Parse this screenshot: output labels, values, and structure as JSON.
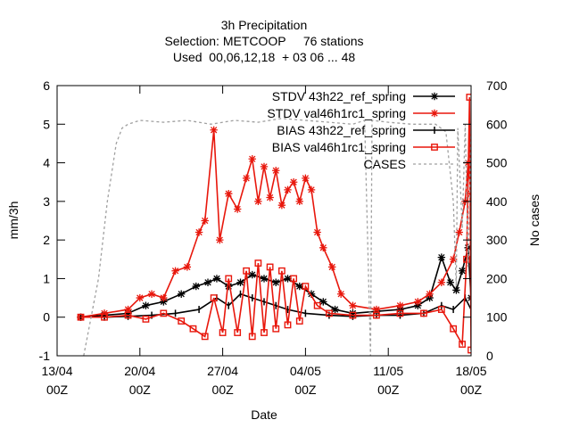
{
  "chart_data": {
    "type": "line",
    "title": [
      "3h Precipitation",
      "Selection: METCOOP     76 stations",
      "Used  00,06,12,18  + 03 06 ... 48"
    ],
    "xlabel": "Date",
    "ylabel": "mm/3h",
    "y2label": "No cases",
    "xlim": [
      "2021-04-13",
      "2021-05-18"
    ],
    "ylim": [
      -1,
      6
    ],
    "y2lim": [
      0,
      700
    ],
    "xticks": [
      {
        "date": "2021-04-13",
        "label1": "13/04",
        "label2": "00Z"
      },
      {
        "date": "2021-04-20",
        "label1": "20/04",
        "label2": "00Z"
      },
      {
        "date": "2021-04-27",
        "label1": "27/04",
        "label2": "00Z"
      },
      {
        "date": "2021-05-04",
        "label1": "04/05",
        "label2": "00Z"
      },
      {
        "date": "2021-05-11",
        "label1": "11/05",
        "label2": "00Z"
      },
      {
        "date": "2021-05-18",
        "label1": "18/05",
        "label2": "00Z"
      }
    ],
    "yticks": [
      "-1",
      "0",
      "1",
      "2",
      "3",
      "4",
      "5",
      "6"
    ],
    "y2ticks": [
      "0",
      "100",
      "200",
      "300",
      "400",
      "500",
      "600",
      "700"
    ],
    "grid": false,
    "legend_position": "top-right",
    "series": [
      {
        "name": "STDV 43h22_ref_spring",
        "color": "#000000",
        "marker": "star",
        "points": [
          [
            "2021-04-15 00:00",
            0.0
          ],
          [
            "2021-04-17 00:00",
            0.05
          ],
          [
            "2021-04-19 00:00",
            0.1
          ],
          [
            "2021-04-20 12:00",
            0.3
          ],
          [
            "2021-04-22 00:00",
            0.4
          ],
          [
            "2021-04-23 12:00",
            0.6
          ],
          [
            "2021-04-24 18:00",
            0.8
          ],
          [
            "2021-04-25 18:00",
            0.9
          ],
          [
            "2021-04-26 12:00",
            1.0
          ],
          [
            "2021-04-27 12:00",
            0.8
          ],
          [
            "2021-04-28 12:00",
            0.9
          ],
          [
            "2021-04-29 12:00",
            1.1
          ],
          [
            "2021-04-30 12:00",
            1.0
          ],
          [
            "2021-05-01 12:00",
            0.9
          ],
          [
            "2021-05-02 12:00",
            1.0
          ],
          [
            "2021-05-03 12:00",
            0.8
          ],
          [
            "2021-05-04 12:00",
            0.6
          ],
          [
            "2021-05-05 12:00",
            0.4
          ],
          [
            "2021-05-06 12:00",
            0.2
          ],
          [
            "2021-05-08 00:00",
            0.1
          ],
          [
            "2021-05-10 00:00",
            0.15
          ],
          [
            "2021-05-12 00:00",
            0.2
          ],
          [
            "2021-05-13 12:00",
            0.3
          ],
          [
            "2021-05-14 12:00",
            0.5
          ],
          [
            "2021-05-15 12:00",
            1.55
          ],
          [
            "2021-05-16 06:00",
            0.9
          ],
          [
            "2021-05-16 18:00",
            0.7
          ],
          [
            "2021-05-17 06:00",
            1.2
          ],
          [
            "2021-05-17 18:00",
            1.8
          ],
          [
            "2021-05-18 00:00",
            0.5
          ]
        ]
      },
      {
        "name": "STDV val46h1rc1_spring",
        "color": "#e8170c",
        "marker": "star",
        "points": [
          [
            "2021-04-15 00:00",
            0.0
          ],
          [
            "2021-04-17 00:00",
            0.1
          ],
          [
            "2021-04-19 00:00",
            0.2
          ],
          [
            "2021-04-20 00:00",
            0.5
          ],
          [
            "2021-04-21 00:00",
            0.6
          ],
          [
            "2021-04-22 00:00",
            0.5
          ],
          [
            "2021-04-23 00:00",
            1.2
          ],
          [
            "2021-04-24 00:00",
            1.3
          ],
          [
            "2021-04-25 00:00",
            2.2
          ],
          [
            "2021-04-25 12:00",
            2.5
          ],
          [
            "2021-04-26 06:00",
            4.85
          ],
          [
            "2021-04-26 18:00",
            2.0
          ],
          [
            "2021-04-27 12:00",
            3.2
          ],
          [
            "2021-04-28 06:00",
            2.8
          ],
          [
            "2021-04-29 00:00",
            3.6
          ],
          [
            "2021-04-29 12:00",
            4.1
          ],
          [
            "2021-04-30 00:00",
            3.0
          ],
          [
            "2021-04-30 12:00",
            3.9
          ],
          [
            "2021-05-01 00:00",
            3.1
          ],
          [
            "2021-05-01 12:00",
            3.8
          ],
          [
            "2021-05-02 00:00",
            2.9
          ],
          [
            "2021-05-02 12:00",
            3.3
          ],
          [
            "2021-05-03 00:00",
            3.5
          ],
          [
            "2021-05-03 12:00",
            3.0
          ],
          [
            "2021-05-04 00:00",
            3.6
          ],
          [
            "2021-05-04 12:00",
            3.3
          ],
          [
            "2021-05-05 00:00",
            2.2
          ],
          [
            "2021-05-05 12:00",
            1.8
          ],
          [
            "2021-05-06 06:00",
            1.3
          ],
          [
            "2021-05-07 00:00",
            0.6
          ],
          [
            "2021-05-08 00:00",
            0.3
          ],
          [
            "2021-05-10 00:00",
            0.2
          ],
          [
            "2021-05-12 00:00",
            0.3
          ],
          [
            "2021-05-13 12:00",
            0.4
          ],
          [
            "2021-05-14 12:00",
            0.6
          ],
          [
            "2021-05-15 12:00",
            0.9
          ],
          [
            "2021-05-16 12:00",
            1.5
          ],
          [
            "2021-05-17 00:00",
            2.2
          ],
          [
            "2021-05-17 12:00",
            3.0
          ],
          [
            "2021-05-17 18:00",
            4.0
          ],
          [
            "2021-05-18 00:00",
            3.2
          ]
        ]
      },
      {
        "name": "BIAS 43h22_ref_spring",
        "color": "#000000",
        "marker": "bar",
        "points": [
          [
            "2021-04-15 00:00",
            0.0
          ],
          [
            "2021-04-17 00:00",
            0.0
          ],
          [
            "2021-04-19 00:00",
            0.02
          ],
          [
            "2021-04-21 00:00",
            0.05
          ],
          [
            "2021-04-23 00:00",
            0.1
          ],
          [
            "2021-04-25 00:00",
            0.2
          ],
          [
            "2021-04-26 12:00",
            0.5
          ],
          [
            "2021-04-27 12:00",
            0.3
          ],
          [
            "2021-04-28 12:00",
            0.6
          ],
          [
            "2021-04-29 12:00",
            0.5
          ],
          [
            "2021-04-30 12:00",
            0.4
          ],
          [
            "2021-05-01 12:00",
            0.3
          ],
          [
            "2021-05-02 12:00",
            0.2
          ],
          [
            "2021-05-04 00:00",
            0.1
          ],
          [
            "2021-05-06 00:00",
            0.05
          ],
          [
            "2021-05-08 00:00",
            0.02
          ],
          [
            "2021-05-10 00:00",
            0.05
          ],
          [
            "2021-05-12 00:00",
            0.05
          ],
          [
            "2021-05-14 00:00",
            0.1
          ],
          [
            "2021-05-15 12:00",
            0.3
          ],
          [
            "2021-05-16 12:00",
            0.2
          ],
          [
            "2021-05-17 12:00",
            0.5
          ],
          [
            "2021-05-18 00:00",
            0.2
          ]
        ]
      },
      {
        "name": "BIAS val46h1rc1_spring",
        "color": "#e8170c",
        "marker": "square",
        "points": [
          [
            "2021-04-15 00:00",
            0.0
          ],
          [
            "2021-04-17 00:00",
            0.0
          ],
          [
            "2021-04-19 00:00",
            0.05
          ],
          [
            "2021-04-20 12:00",
            -0.05
          ],
          [
            "2021-04-22 00:00",
            0.1
          ],
          [
            "2021-04-23 12:00",
            -0.1
          ],
          [
            "2021-04-24 12:00",
            -0.3
          ],
          [
            "2021-04-25 12:00",
            -0.5
          ],
          [
            "2021-04-26 06:00",
            0.5
          ],
          [
            "2021-04-27 00:00",
            -0.4
          ],
          [
            "2021-04-27 12:00",
            1.0
          ],
          [
            "2021-04-28 06:00",
            -0.4
          ],
          [
            "2021-04-29 00:00",
            1.2
          ],
          [
            "2021-04-29 12:00",
            -0.5
          ],
          [
            "2021-04-30 00:00",
            1.4
          ],
          [
            "2021-04-30 12:00",
            -0.4
          ],
          [
            "2021-05-01 00:00",
            1.3
          ],
          [
            "2021-05-01 12:00",
            -0.3
          ],
          [
            "2021-05-02 00:00",
            1.2
          ],
          [
            "2021-05-02 12:00",
            -0.2
          ],
          [
            "2021-05-03 00:00",
            1.0
          ],
          [
            "2021-05-03 12:00",
            -0.1
          ],
          [
            "2021-05-04 00:00",
            0.8
          ],
          [
            "2021-05-05 00:00",
            0.3
          ],
          [
            "2021-05-06 00:00",
            0.1
          ],
          [
            "2021-05-08 00:00",
            0.05
          ],
          [
            "2021-05-10 00:00",
            0.05
          ],
          [
            "2021-05-12 00:00",
            0.1
          ],
          [
            "2021-05-14 00:00",
            0.1
          ],
          [
            "2021-05-15 12:00",
            0.2
          ],
          [
            "2021-05-16 12:00",
            -0.3
          ],
          [
            "2021-05-17 06:00",
            -0.7
          ],
          [
            "2021-05-17 15:00",
            1.5
          ],
          [
            "2021-05-17 21:00",
            5.7
          ],
          [
            "2021-05-18 00:00",
            -0.85
          ]
        ]
      },
      {
        "name": "CASES",
        "color": "#a0a0a0",
        "axis": "y2",
        "dash": true,
        "points": [
          [
            "2021-04-15 06:00",
            0
          ],
          [
            "2021-04-15 15:00",
            60
          ],
          [
            "2021-04-16 12:00",
            200
          ],
          [
            "2021-04-17 06:00",
            400
          ],
          [
            "2021-04-18 00:00",
            550
          ],
          [
            "2021-04-18 12:00",
            590
          ],
          [
            "2021-04-19 00:00",
            600
          ],
          [
            "2021-04-20 00:00",
            610
          ],
          [
            "2021-04-22 00:00",
            605
          ],
          [
            "2021-04-24 00:00",
            610
          ],
          [
            "2021-04-26 00:00",
            600
          ],
          [
            "2021-04-28 00:00",
            610
          ],
          [
            "2021-04-30 00:00",
            605
          ],
          [
            "2021-05-02 00:00",
            615
          ],
          [
            "2021-05-04 00:00",
            610
          ],
          [
            "2021-05-06 00:00",
            605
          ],
          [
            "2021-05-08 00:00",
            600
          ],
          [
            "2021-05-09 00:00",
            610
          ],
          [
            "2021-05-09 12:00",
            0
          ],
          [
            "2021-05-09 15:00",
            610
          ],
          [
            "2021-05-11 00:00",
            605
          ],
          [
            "2021-05-13 00:00",
            600
          ],
          [
            "2021-05-15 00:00",
            600
          ],
          [
            "2021-05-15 21:00",
            580
          ],
          [
            "2021-05-16 12:00",
            400
          ],
          [
            "2021-05-16 18:00",
            180
          ],
          [
            "2021-05-16 21:00",
            590
          ],
          [
            "2021-05-17 06:00",
            330
          ],
          [
            "2021-05-17 12:00",
            600
          ],
          [
            "2021-05-17 18:00",
            230
          ],
          [
            "2021-05-18 00:00",
            590
          ]
        ]
      }
    ]
  }
}
